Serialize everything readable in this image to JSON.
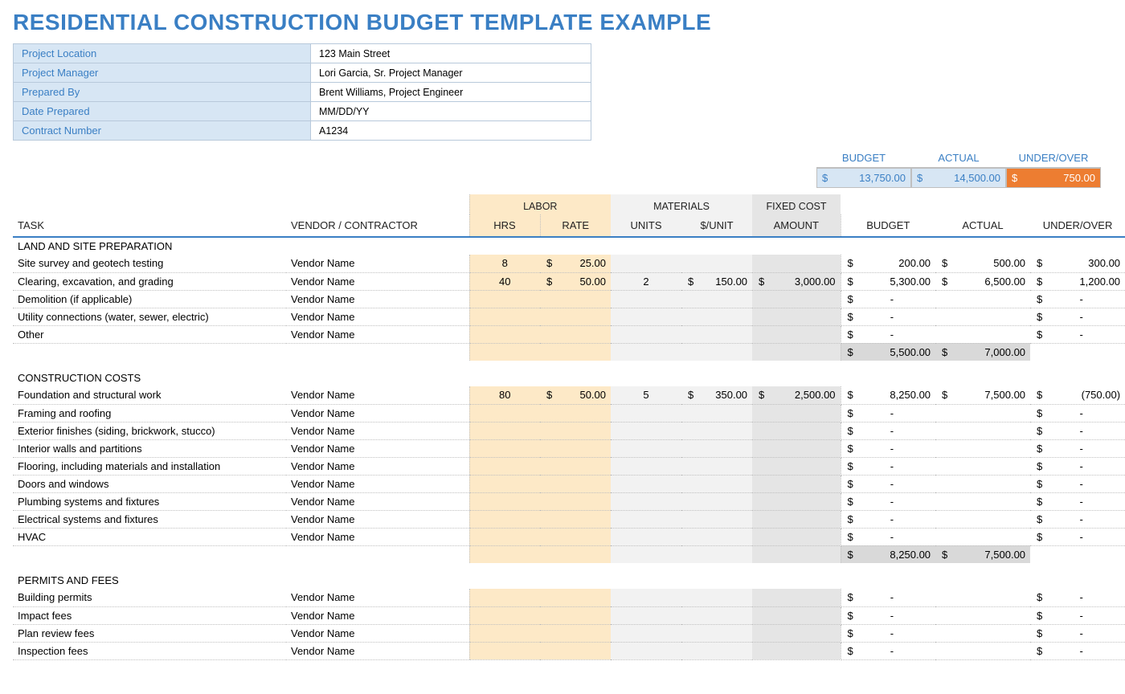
{
  "colors": {
    "accent": "#3a7fc4",
    "labor_bg": "#fde9c7",
    "mat_bg": "#f2f2f2",
    "fixed_bg": "#e5e5e5",
    "info_bg": "#d7e6f4",
    "over_bg": "#ed7d31",
    "subtotal_bg": "#d9d9d9",
    "border": "#bfbfbf"
  },
  "title": "RESIDENTIAL CONSTRUCTION BUDGET TEMPLATE EXAMPLE",
  "info": [
    {
      "label": "Project Location",
      "value": "123 Main Street"
    },
    {
      "label": "Project Manager",
      "value": "Lori Garcia, Sr. Project Manager"
    },
    {
      "label": "Prepared By",
      "value": "Brent Williams, Project Engineer"
    },
    {
      "label": "Date Prepared",
      "value": "MM/DD/YY"
    },
    {
      "label": "Contract Number",
      "value": "A1234"
    }
  ],
  "summary": {
    "headers": {
      "budget": "BUDGET",
      "actual": "ACTUAL",
      "over": "UNDER/OVER"
    },
    "budget": "13,750.00",
    "actual": "14,500.00",
    "over": "750.00"
  },
  "groups": {
    "labor": "LABOR",
    "materials": "MATERIALS",
    "fixed": "FIXED COST"
  },
  "columns": {
    "task": "TASK",
    "vendor": "VENDOR / CONTRACTOR",
    "hrs": "HRS",
    "rate": "RATE",
    "units": "UNITS",
    "punit": "$/UNIT",
    "fixed": "AMOUNT",
    "budget": "BUDGET",
    "actual": "ACTUAL",
    "over": "UNDER/OVER"
  },
  "sections": [
    {
      "title": "LAND AND SITE PREPARATION",
      "rows": [
        {
          "task": "Site survey and geotech testing",
          "vendor": "Vendor Name",
          "hrs": "8",
          "rate": "25.00",
          "units": "",
          "punit": "",
          "fixed": "",
          "budget": "200.00",
          "actual": "500.00",
          "over": "300.00"
        },
        {
          "task": "Clearing, excavation, and grading",
          "vendor": "Vendor Name",
          "hrs": "40",
          "rate": "50.00",
          "units": "2",
          "punit": "150.00",
          "fixed": "3,000.00",
          "budget": "5,300.00",
          "actual": "6,500.00",
          "over": "1,200.00"
        },
        {
          "task": "Demolition (if applicable)",
          "vendor": "Vendor Name",
          "hrs": "",
          "rate": "",
          "units": "",
          "punit": "",
          "fixed": "",
          "budget": "-",
          "actual": "",
          "over": "-"
        },
        {
          "task": "Utility connections (water, sewer, electric)",
          "vendor": "Vendor Name",
          "hrs": "",
          "rate": "",
          "units": "",
          "punit": "",
          "fixed": "",
          "budget": "-",
          "actual": "",
          "over": "-"
        },
        {
          "task": "Other",
          "vendor": "Vendor Name",
          "hrs": "",
          "rate": "",
          "units": "",
          "punit": "",
          "fixed": "",
          "budget": "-",
          "actual": "",
          "over": "-"
        }
      ],
      "subtotal": {
        "budget": "5,500.00",
        "actual": "7,000.00"
      }
    },
    {
      "title": "CONSTRUCTION COSTS",
      "rows": [
        {
          "task": "Foundation and structural work",
          "vendor": "Vendor Name",
          "hrs": "80",
          "rate": "50.00",
          "units": "5",
          "punit": "350.00",
          "fixed": "2,500.00",
          "budget": "8,250.00",
          "actual": "7,500.00",
          "over": "(750.00)"
        },
        {
          "task": "Framing and roofing",
          "vendor": "Vendor Name",
          "hrs": "",
          "rate": "",
          "units": "",
          "punit": "",
          "fixed": "",
          "budget": "-",
          "actual": "",
          "over": "-"
        },
        {
          "task": "Exterior finishes (siding, brickwork, stucco)",
          "vendor": "Vendor Name",
          "hrs": "",
          "rate": "",
          "units": "",
          "punit": "",
          "fixed": "",
          "budget": "-",
          "actual": "",
          "over": "-"
        },
        {
          "task": "Interior walls and partitions",
          "vendor": "Vendor Name",
          "hrs": "",
          "rate": "",
          "units": "",
          "punit": "",
          "fixed": "",
          "budget": "-",
          "actual": "",
          "over": "-"
        },
        {
          "task": "Flooring, including materials and installation",
          "vendor": "Vendor Name",
          "hrs": "",
          "rate": "",
          "units": "",
          "punit": "",
          "fixed": "",
          "budget": "-",
          "actual": "",
          "over": "-"
        },
        {
          "task": "Doors and windows",
          "vendor": "Vendor Name",
          "hrs": "",
          "rate": "",
          "units": "",
          "punit": "",
          "fixed": "",
          "budget": "-",
          "actual": "",
          "over": "-"
        },
        {
          "task": "Plumbing systems and fixtures",
          "vendor": "Vendor Name",
          "hrs": "",
          "rate": "",
          "units": "",
          "punit": "",
          "fixed": "",
          "budget": "-",
          "actual": "",
          "over": "-"
        },
        {
          "task": "Electrical systems and fixtures",
          "vendor": "Vendor Name",
          "hrs": "",
          "rate": "",
          "units": "",
          "punit": "",
          "fixed": "",
          "budget": "-",
          "actual": "",
          "over": "-"
        },
        {
          "task": "HVAC",
          "vendor": "Vendor Name",
          "hrs": "",
          "rate": "",
          "units": "",
          "punit": "",
          "fixed": "",
          "budget": "-",
          "actual": "",
          "over": "-"
        }
      ],
      "subtotal": {
        "budget": "8,250.00",
        "actual": "7,500.00"
      }
    },
    {
      "title": "PERMITS AND FEES",
      "rows": [
        {
          "task": "Building permits",
          "vendor": "Vendor Name",
          "hrs": "",
          "rate": "",
          "units": "",
          "punit": "",
          "fixed": "",
          "budget": "-",
          "actual": "",
          "over": "-"
        },
        {
          "task": "Impact fees",
          "vendor": "Vendor Name",
          "hrs": "",
          "rate": "",
          "units": "",
          "punit": "",
          "fixed": "",
          "budget": "-",
          "actual": "",
          "over": "-"
        },
        {
          "task": "Plan review fees",
          "vendor": "Vendor Name",
          "hrs": "",
          "rate": "",
          "units": "",
          "punit": "",
          "fixed": "",
          "budget": "-",
          "actual": "",
          "over": "-"
        },
        {
          "task": "Inspection fees",
          "vendor": "Vendor Name",
          "hrs": "",
          "rate": "",
          "units": "",
          "punit": "",
          "fixed": "",
          "budget": "-",
          "actual": "",
          "over": "-"
        }
      ]
    }
  ]
}
